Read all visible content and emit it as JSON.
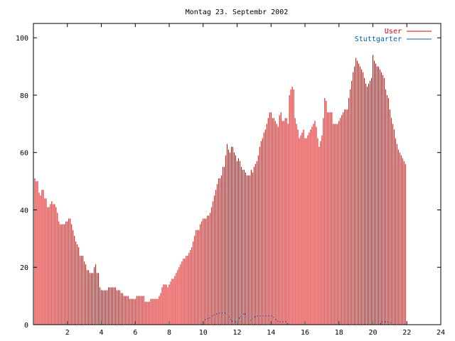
{
  "chart_data": {
    "type": "bar",
    "title": "Montag 23. Septembr 2002",
    "xlabel": "",
    "ylabel": "",
    "xlim": [
      0,
      24
    ],
    "ylim": [
      0,
      105
    ],
    "xticks": [
      "2",
      "4",
      "6",
      "8",
      "10",
      "12",
      "14",
      "16",
      "18",
      "20",
      "22",
      "24"
    ],
    "yticks": [
      "0",
      "20",
      "40",
      "60",
      "80",
      "100"
    ],
    "grid": false,
    "legend_position": "top-right",
    "step_minutes": 5,
    "series": [
      {
        "name": "User",
        "color": "#dd0000",
        "style": "impulses",
        "values": [
          52,
          51,
          50,
          50,
          46,
          45,
          47,
          47,
          44,
          44,
          41,
          41,
          42,
          43,
          42,
          42,
          41,
          39,
          36,
          35,
          35,
          35,
          35,
          36,
          36,
          37,
          37,
          35,
          33,
          31,
          29,
          28,
          27,
          24,
          24,
          24,
          22,
          21,
          19,
          19,
          18,
          18,
          18,
          20,
          21,
          18,
          18,
          13,
          12,
          12,
          12,
          12,
          12,
          13,
          13,
          13,
          13,
          13,
          13,
          12,
          12,
          12,
          11,
          11,
          10,
          10,
          10,
          10,
          9,
          9,
          9,
          9,
          9,
          10,
          10,
          10,
          10,
          10,
          10,
          8,
          8,
          8,
          8,
          9,
          9,
          9,
          9,
          9,
          9,
          10,
          11,
          13,
          14,
          14,
          14,
          13,
          14,
          15,
          16,
          16,
          17,
          18,
          19,
          20,
          21,
          22,
          23,
          23,
          24,
          24,
          25,
          26,
          27,
          29,
          31,
          33,
          33,
          33,
          35,
          36,
          37,
          37,
          37,
          38,
          38,
          39,
          41,
          43,
          45,
          47,
          49,
          51,
          51,
          52,
          55,
          55,
          59,
          63,
          61,
          60,
          62,
          62,
          60,
          59,
          57,
          58,
          57,
          55,
          54,
          54,
          53,
          52,
          52,
          52,
          54,
          53,
          55,
          56,
          57,
          59,
          62,
          64,
          65,
          67,
          68,
          70,
          72,
          74,
          74,
          72,
          72,
          71,
          70,
          69,
          73,
          74,
          71,
          71,
          72,
          72,
          70,
          80,
          82,
          83,
          82,
          72,
          70,
          68,
          65,
          66,
          67,
          68,
          65,
          65,
          66,
          67,
          68,
          69,
          70,
          71,
          69,
          65,
          62,
          64,
          66,
          72,
          79,
          78,
          74,
          74,
          74,
          74,
          70,
          70,
          70,
          70,
          71,
          72,
          73,
          74,
          75,
          75,
          75,
          79,
          82,
          85,
          88,
          90,
          93,
          92,
          91,
          90,
          89,
          88,
          86,
          84,
          83,
          84,
          85,
          86,
          94,
          92,
          91,
          90,
          90,
          89,
          88,
          87,
          86,
          82,
          80,
          79,
          75,
          72,
          70,
          68,
          65,
          63,
          61,
          60,
          59,
          58,
          57,
          56
        ]
      },
      {
        "name": "Stuttgarter",
        "color": "#0060b0",
        "style": "lines",
        "values": [
          0,
          0,
          0,
          0,
          0,
          0,
          0,
          0,
          0,
          0,
          0,
          0,
          0,
          0,
          0,
          0,
          0,
          0,
          0,
          0,
          0,
          0,
          0,
          0,
          0,
          0,
          0,
          0,
          0,
          0,
          0,
          0,
          0,
          0,
          0,
          0,
          0,
          0,
          0,
          0,
          0,
          0,
          0,
          0,
          0,
          0,
          0,
          0,
          0,
          0,
          0,
          0,
          0,
          0,
          0,
          0,
          0,
          0,
          0,
          0,
          0,
          0,
          0,
          0,
          0,
          0,
          0,
          0,
          0,
          0,
          0,
          0,
          0,
          0,
          0,
          0,
          0,
          0,
          0,
          0,
          0,
          0,
          0,
          0,
          0,
          0,
          0,
          0,
          0,
          0,
          0,
          0,
          0,
          0,
          0,
          0,
          0,
          0,
          0,
          0,
          0,
          0,
          0,
          0,
          0,
          0,
          0,
          0,
          0,
          0,
          0,
          0,
          0,
          0,
          0,
          0,
          0,
          0,
          0,
          0,
          1,
          1.5,
          2,
          2,
          2,
          2.5,
          3,
          3,
          3.5,
          3.5,
          4,
          4,
          4,
          4,
          4,
          4,
          4,
          3.5,
          3,
          2,
          1.5,
          1,
          1,
          1,
          1.5,
          2,
          2.5,
          3,
          3.5,
          4,
          3.5,
          3,
          2,
          1.5,
          1.5,
          2,
          2.5,
          3,
          3,
          3,
          3,
          3,
          3,
          3,
          3,
          3,
          3,
          3,
          3,
          3,
          2.5,
          2,
          1.5,
          1,
          1,
          1,
          1,
          1,
          1,
          1,
          0,
          0,
          0,
          0,
          0,
          0,
          0,
          0,
          0,
          0,
          0,
          0,
          0,
          0,
          0,
          0,
          0,
          0,
          0,
          0,
          0,
          0,
          0,
          0,
          0,
          0,
          0,
          0,
          0,
          0,
          0,
          0,
          0,
          0,
          0,
          0,
          0,
          0,
          0,
          0,
          0,
          0,
          0,
          0,
          0,
          0,
          0,
          0,
          0,
          0,
          0,
          0,
          0,
          0,
          0,
          0,
          0,
          0,
          0,
          0,
          0,
          0,
          0,
          0,
          0,
          0,
          1,
          1,
          1,
          1,
          1,
          1,
          1,
          0,
          0,
          0,
          0,
          0,
          0,
          0,
          0,
          0,
          0,
          0
        ]
      }
    ]
  }
}
